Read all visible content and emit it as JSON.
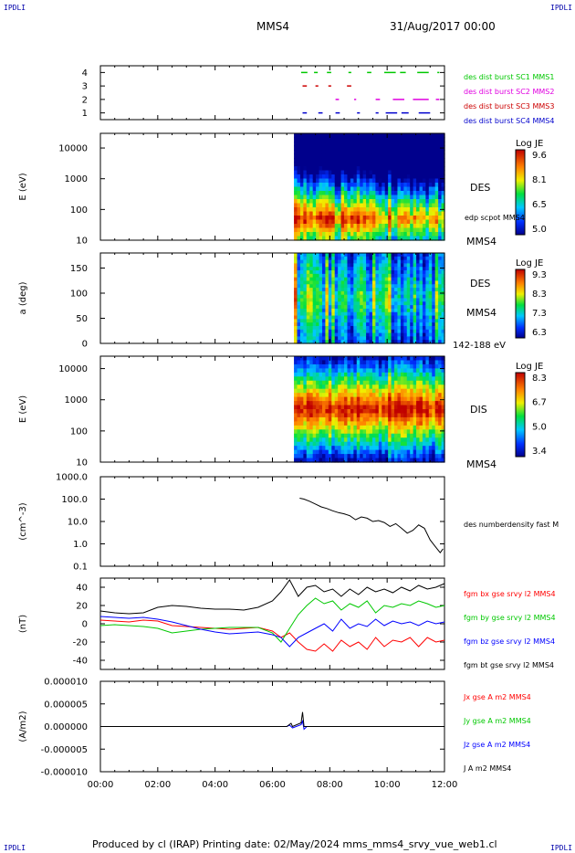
{
  "corner_labels": {
    "top_left": "IPDLI",
    "top_right": "IPDLI",
    "bottom_left": "IPDLI",
    "bottom_right": "IPDLI"
  },
  "header": {
    "spacecraft": "MMS4",
    "date": "31/Aug/2017 00:00"
  },
  "footer": "Produced by cl (IRAP)   Printing date: 02/May/2024   mms_mms4_srvy_vue_web1.cl",
  "colors": {
    "black": "#000000",
    "red": "#ff0000",
    "green": "#00c800",
    "blue": "#0000ff",
    "magenta": "#e000e0"
  },
  "chart_data": [
    {
      "type": "timeline",
      "x_range": [
        "00:00",
        "12:00"
      ],
      "ylim": [
        0.5,
        4.5
      ],
      "yticks": [
        "1",
        "2",
        "3",
        "4"
      ],
      "series": [
        {
          "name": "des dist burst SC1 MMS1",
          "level": 4,
          "color": "#00c800",
          "intervals": [
            [
              7.0,
              7.22
            ],
            [
              7.45,
              7.58
            ],
            [
              7.9,
              8.05
            ],
            [
              8.65,
              8.75
            ],
            [
              9.3,
              9.45
            ],
            [
              9.9,
              10.3
            ],
            [
              10.45,
              10.65
            ],
            [
              11.05,
              11.45
            ],
            [
              11.75,
              11.82
            ]
          ]
        },
        {
          "name": "des dist burst SC2 MMS2",
          "level": 2,
          "color": "#e000e0",
          "intervals": [
            [
              8.2,
              8.32
            ],
            [
              8.85,
              8.92
            ],
            [
              9.6,
              9.75
            ],
            [
              10.2,
              10.6
            ],
            [
              10.9,
              11.45
            ],
            [
              11.7,
              11.82
            ]
          ]
        },
        {
          "name": "des dist burst SC3 MMS3",
          "level": 3,
          "color": "#cc0000",
          "intervals": [
            [
              7.05,
              7.2
            ],
            [
              7.5,
              7.6
            ],
            [
              7.95,
              8.05
            ],
            [
              8.6,
              8.75
            ]
          ]
        },
        {
          "name": "des dist burst SC4 MMS4",
          "level": 1,
          "color": "#0000cc",
          "intervals": [
            [
              7.05,
              7.2
            ],
            [
              7.6,
              7.75
            ],
            [
              8.2,
              8.35
            ],
            [
              8.95,
              9.05
            ],
            [
              9.6,
              9.7
            ],
            [
              9.95,
              10.35
            ],
            [
              10.5,
              10.75
            ],
            [
              11.1,
              11.5
            ]
          ]
        }
      ]
    },
    {
      "type": "heatmap",
      "ylabel": "E (eV)",
      "yscale": "log",
      "ylim": [
        10,
        30000
      ],
      "yticks": [
        "10",
        "100",
        "1000",
        "10000"
      ],
      "x_range": [
        "00:00",
        "12:00"
      ],
      "labels": [
        "DES",
        "edp scpot MMS4",
        "MMS4"
      ],
      "colorbar": {
        "title": "Log JE",
        "ticks": [
          "9.6",
          "8.1",
          "6.5",
          "5.0"
        ],
        "range": [
          5.0,
          9.6
        ]
      },
      "data_start_hour": 6.75,
      "peak_energy_eV": 80
    },
    {
      "type": "heatmap",
      "ylabel": "a (deg)",
      "ylim": [
        0,
        180
      ],
      "yticks": [
        "0",
        "50",
        "100",
        "150"
      ],
      "x_range": [
        "00:00",
        "12:00"
      ],
      "labels": [
        "DES",
        "MMS4",
        "142-188 eV"
      ],
      "colorbar": {
        "title": "Log JE",
        "ticks": [
          "9.3",
          "8.3",
          "7.3",
          "6.3"
        ],
        "range": [
          6.3,
          9.3
        ]
      },
      "data_start_hour": 6.75
    },
    {
      "type": "heatmap",
      "ylabel": "E (eV)",
      "yscale": "log",
      "ylim": [
        10,
        25000
      ],
      "yticks": [
        "10",
        "100",
        "1000",
        "10000"
      ],
      "x_range": [
        "00:00",
        "12:00"
      ],
      "labels": [
        "DIS",
        "MMS4"
      ],
      "colorbar": {
        "title": "Log JE",
        "ticks": [
          "8.3",
          "6.7",
          "5.0",
          "3.4"
        ],
        "range": [
          3.4,
          8.3
        ]
      },
      "data_start_hour": 6.75,
      "peak_energy_eV": 1000
    },
    {
      "type": "line",
      "ylabel": "(cm^-3)",
      "yscale": "log",
      "ylim": [
        0.1,
        1000
      ],
      "yticks": [
        "0.1",
        "1.0",
        "10.0",
        "100.0",
        "1000.0"
      ],
      "x_range": [
        "00:00",
        "12:00"
      ],
      "series": [
        {
          "name": "des numberdensity fast M",
          "color": "#000000",
          "x": [
            6.95,
            7.1,
            7.3,
            7.5,
            7.7,
            7.9,
            8.1,
            8.3,
            8.5,
            8.7,
            8.9,
            9.1,
            9.3,
            9.5,
            9.7,
            9.9,
            10.1,
            10.3,
            10.5,
            10.7,
            10.9,
            11.1,
            11.3,
            11.5,
            11.7,
            11.85,
            11.95
          ],
          "y": [
            110,
            100,
            80,
            60,
            45,
            38,
            30,
            25,
            22,
            18,
            12,
            16,
            14,
            10,
            11,
            9,
            6,
            8,
            5,
            3,
            4,
            7,
            5,
            1.5,
            0.7,
            0.4,
            0.6
          ]
        }
      ]
    },
    {
      "type": "line",
      "ylabel": "(nT)",
      "ylim": [
        -50,
        50
      ],
      "yticks": [
        "-40",
        "-20",
        "0",
        "20",
        "40"
      ],
      "x_range": [
        "00:00",
        "12:00"
      ],
      "series": [
        {
          "name": "fgm bx gse srvy l2 MMS4",
          "color": "#ff0000",
          "x": [
            0,
            0.5,
            1,
            1.5,
            2,
            2.5,
            3,
            3.5,
            4,
            4.5,
            5,
            5.5,
            6,
            6.3,
            6.6,
            6.9,
            7.2,
            7.5,
            7.8,
            8.1,
            8.4,
            8.7,
            9,
            9.3,
            9.6,
            9.9,
            10.2,
            10.5,
            10.8,
            11.1,
            11.4,
            11.7,
            12
          ],
          "y": [
            4,
            3,
            2,
            4,
            3,
            -2,
            -3,
            -4,
            -5,
            -6,
            -5,
            -4,
            -8,
            -15,
            -10,
            -20,
            -28,
            -30,
            -22,
            -30,
            -18,
            -25,
            -20,
            -28,
            -15,
            -25,
            -18,
            -20,
            -15,
            -25,
            -15,
            -20,
            -18
          ]
        },
        {
          "name": "fgm by gse srvy l2 MMS4",
          "color": "#00c800",
          "x": [
            0,
            0.5,
            1,
            1.5,
            2,
            2.5,
            3,
            3.5,
            4,
            4.5,
            5,
            5.5,
            6,
            6.3,
            6.6,
            6.9,
            7.2,
            7.5,
            7.8,
            8.1,
            8.4,
            8.7,
            9,
            9.3,
            9.6,
            9.9,
            10.2,
            10.5,
            10.8,
            11.1,
            11.4,
            11.7,
            12
          ],
          "y": [
            -2,
            -1,
            -2,
            -3,
            -5,
            -10,
            -8,
            -6,
            -5,
            -4,
            -4,
            -4,
            -10,
            -20,
            -5,
            10,
            20,
            28,
            22,
            25,
            15,
            22,
            18,
            25,
            12,
            20,
            18,
            22,
            20,
            25,
            22,
            18,
            20
          ]
        },
        {
          "name": "fgm bz gse srvy l2 MMS4",
          "color": "#0000ff",
          "x": [
            0,
            0.5,
            1,
            1.5,
            2,
            2.5,
            3,
            3.5,
            4,
            4.5,
            5,
            5.5,
            6,
            6.3,
            6.6,
            6.9,
            7.2,
            7.5,
            7.8,
            8.1,
            8.4,
            8.7,
            9,
            9.3,
            9.6,
            9.9,
            10.2,
            10.5,
            10.8,
            11.1,
            11.4,
            11.7,
            12
          ],
          "y": [
            8,
            7,
            6,
            7,
            5,
            2,
            -2,
            -6,
            -9,
            -11,
            -10,
            -9,
            -12,
            -15,
            -25,
            -15,
            -10,
            -5,
            0,
            -8,
            5,
            -5,
            0,
            -3,
            5,
            -2,
            3,
            0,
            2,
            -2,
            3,
            0,
            2
          ]
        },
        {
          "name": "fgm bt gse srvy l2 MMS4",
          "color": "#000000",
          "x": [
            0,
            0.5,
            1,
            1.5,
            2,
            2.5,
            3,
            3.5,
            4,
            4.5,
            5,
            5.5,
            6,
            6.3,
            6.6,
            6.9,
            7.2,
            7.5,
            7.8,
            8.1,
            8.4,
            8.7,
            9,
            9.3,
            9.6,
            9.9,
            10.2,
            10.5,
            10.8,
            11.1,
            11.4,
            11.7,
            12
          ],
          "y": [
            14,
            12,
            11,
            12,
            18,
            20,
            19,
            17,
            16,
            16,
            15,
            18,
            25,
            35,
            48,
            30,
            40,
            42,
            35,
            38,
            30,
            38,
            32,
            40,
            35,
            38,
            34,
            40,
            36,
            42,
            38,
            40,
            44
          ]
        }
      ]
    },
    {
      "type": "line",
      "ylabel": "(A/m2)",
      "ylim": [
        -1e-05,
        1e-05
      ],
      "yticks": [
        "-0.000010",
        "-0.000005",
        "0.000000",
        "0.000005",
        "0.000010"
      ],
      "xticks": [
        "00:00",
        "02:00",
        "04:00",
        "06:00",
        "08:00",
        "10:00",
        "12:00"
      ],
      "series": [
        {
          "name": "Jx gse A m2 MMS4",
          "color": "#ff0000"
        },
        {
          "name": "Jy gse A m2 MMS4",
          "color": "#00c800"
        },
        {
          "name": "Jz gse A m2 MMS4",
          "color": "#0000ff",
          "x": [
            0,
            2,
            2.1,
            4,
            6,
            6.5,
            6.6,
            6.7,
            7.0,
            7.05,
            7.1,
            7.2,
            8,
            10,
            12
          ],
          "y": [
            0,
            0,
            0,
            0,
            0,
            0,
            3e-07,
            -3e-07,
            4e-07,
            1.2e-06,
            -6e-07,
            0,
            0,
            0,
            0
          ]
        },
        {
          "name": "J A m2 MMS4",
          "color": "#000000",
          "x": [
            0,
            6.5,
            6.65,
            6.7,
            7.0,
            7.05,
            7.1,
            7.2,
            12
          ],
          "y": [
            0,
            0,
            7e-07,
            0,
            8e-07,
            3.2e-06,
            0,
            0,
            0
          ]
        }
      ]
    }
  ]
}
